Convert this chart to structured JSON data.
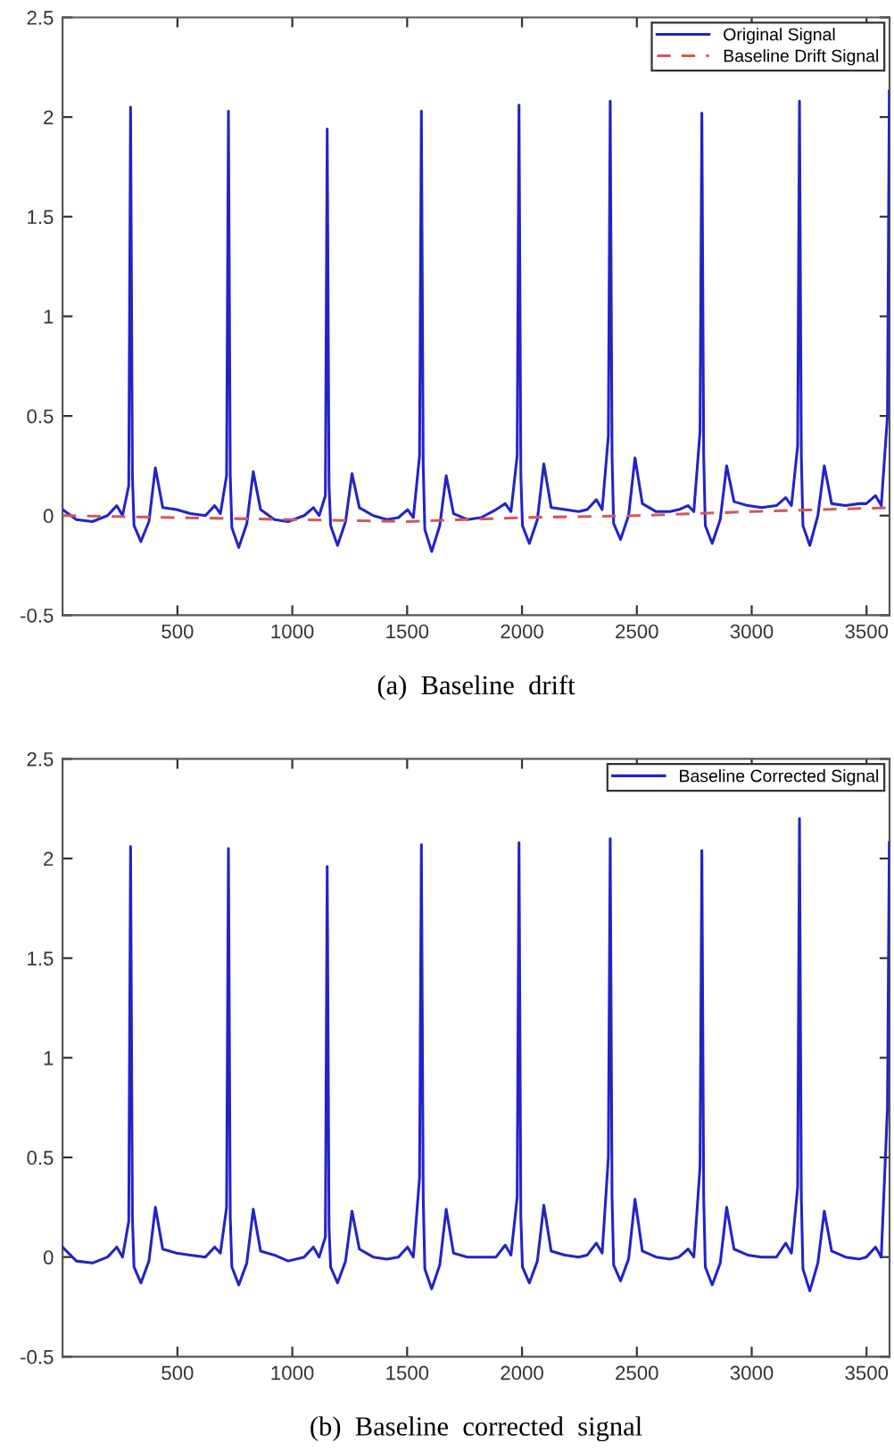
{
  "chart_data": [
    {
      "type": "line",
      "title": "(a)  Baseline  drift",
      "x": [
        0,
        60,
        130,
        196,
        236,
        261,
        288,
        296,
        304,
        311,
        341,
        376,
        404,
        436,
        496,
        556,
        622,
        662,
        687,
        714,
        722,
        730,
        737,
        767,
        802,
        830,
        862,
        922,
        982,
        1052,
        1092,
        1117,
        1144,
        1152,
        1160,
        1167,
        1197,
        1232,
        1260,
        1292,
        1352,
        1412,
        1462,
        1502,
        1527,
        1554,
        1562,
        1570,
        1577,
        1607,
        1642,
        1670,
        1702,
        1762,
        1822,
        1887,
        1927,
        1952,
        1979,
        1987,
        1995,
        2002,
        2032,
        2067,
        2095,
        2127,
        2187,
        2247,
        2284,
        2324,
        2349,
        2376,
        2384,
        2392,
        2399,
        2429,
        2464,
        2492,
        2524,
        2584,
        2644,
        2683,
        2723,
        2748,
        2775,
        2783,
        2791,
        2798,
        2828,
        2863,
        2891,
        2923,
        2983,
        3043,
        3108,
        3148,
        3173,
        3200,
        3208,
        3216,
        3223,
        3253,
        3288,
        3316,
        3348,
        3408,
        3468,
        3499,
        3539,
        3564,
        3591,
        3599
      ],
      "series": [
        {
          "name": "Original Signal",
          "color": "#2323c8",
          "line_style": "solid",
          "values": [
            0.03,
            -0.02,
            -0.03,
            0.0,
            0.05,
            0.0,
            0.15,
            2.05,
            0.2,
            -0.05,
            -0.13,
            -0.03,
            0.24,
            0.04,
            0.03,
            0.01,
            0.0,
            0.05,
            0.01,
            0.2,
            2.03,
            0.2,
            -0.06,
            -0.16,
            -0.04,
            0.22,
            0.03,
            -0.02,
            -0.03,
            0.0,
            0.04,
            0.0,
            0.1,
            1.94,
            0.15,
            -0.05,
            -0.15,
            -0.03,
            0.21,
            0.04,
            0.0,
            -0.02,
            -0.01,
            0.03,
            -0.01,
            0.3,
            2.03,
            0.25,
            -0.07,
            -0.18,
            -0.05,
            0.2,
            0.01,
            -0.02,
            -0.01,
            0.03,
            0.06,
            0.02,
            0.3,
            2.06,
            0.2,
            -0.05,
            -0.14,
            -0.02,
            0.26,
            0.04,
            0.03,
            0.02,
            0.03,
            0.08,
            0.03,
            0.4,
            2.08,
            0.3,
            -0.04,
            -0.12,
            0.0,
            0.29,
            0.06,
            0.02,
            0.02,
            0.03,
            0.05,
            0.02,
            0.42,
            2.02,
            0.3,
            -0.05,
            -0.14,
            -0.02,
            0.25,
            0.07,
            0.05,
            0.04,
            0.05,
            0.09,
            0.05,
            0.35,
            2.08,
            0.3,
            -0.05,
            -0.15,
            0.0,
            0.25,
            0.06,
            0.05,
            0.06,
            0.06,
            0.1,
            0.05,
            0.5,
            2.13
          ]
        },
        {
          "name": "Baseline Drift Signal",
          "color": "#d05a5a",
          "line_style": "dashed",
          "x": [
            0,
            500,
            1000,
            1500,
            2000,
            2500,
            3000,
            3600
          ],
          "values": [
            0.0,
            -0.01,
            -0.02,
            -0.03,
            -0.01,
            0.0,
            0.02,
            0.04
          ]
        }
      ],
      "xlim": [
        0,
        3600
      ],
      "xticks": [
        500,
        1000,
        1500,
        2000,
        2500,
        3000,
        3500
      ],
      "ylim": [
        -0.5,
        2.5
      ],
      "yticks": [
        -0.5,
        0,
        0.5,
        1,
        1.5,
        2,
        2.5
      ],
      "legend": "top right",
      "grid": false
    },
    {
      "type": "line",
      "title": "(b)  Baseline  corrected  signal",
      "x": [
        0,
        60,
        130,
        196,
        236,
        261,
        288,
        296,
        304,
        311,
        341,
        376,
        404,
        436,
        496,
        556,
        622,
        662,
        687,
        714,
        722,
        730,
        737,
        767,
        802,
        830,
        862,
        922,
        982,
        1052,
        1092,
        1117,
        1144,
        1152,
        1160,
        1167,
        1197,
        1232,
        1260,
        1292,
        1352,
        1412,
        1462,
        1502,
        1527,
        1554,
        1562,
        1570,
        1577,
        1607,
        1642,
        1670,
        1702,
        1762,
        1822,
        1887,
        1927,
        1952,
        1979,
        1987,
        1995,
        2002,
        2032,
        2067,
        2095,
        2127,
        2187,
        2247,
        2284,
        2324,
        2349,
        2376,
        2384,
        2392,
        2399,
        2429,
        2464,
        2492,
        2524,
        2584,
        2644,
        2683,
        2723,
        2748,
        2775,
        2783,
        2791,
        2798,
        2828,
        2863,
        2891,
        2923,
        2983,
        3043,
        3108,
        3148,
        3173,
        3200,
        3208,
        3216,
        3223,
        3253,
        3288,
        3316,
        3348,
        3408,
        3468,
        3499,
        3539,
        3564,
        3591,
        3599
      ],
      "series": [
        {
          "name": "Baseline Corrected Signal",
          "color": "#2323c8",
          "line_style": "solid",
          "values": [
            0.05,
            -0.02,
            -0.03,
            0.0,
            0.05,
            0.0,
            0.18,
            2.06,
            0.2,
            -0.05,
            -0.13,
            -0.02,
            0.25,
            0.04,
            0.02,
            0.01,
            0.0,
            0.05,
            0.02,
            0.25,
            2.05,
            0.2,
            -0.05,
            -0.14,
            -0.03,
            0.24,
            0.03,
            0.01,
            -0.02,
            0.0,
            0.05,
            0.0,
            0.1,
            1.96,
            0.15,
            -0.05,
            -0.13,
            -0.02,
            0.23,
            0.04,
            0.0,
            -0.01,
            0.0,
            0.05,
            0.0,
            0.4,
            2.07,
            0.3,
            -0.06,
            -0.16,
            -0.04,
            0.24,
            0.02,
            0.0,
            0.0,
            0.0,
            0.06,
            0.01,
            0.3,
            2.08,
            0.2,
            -0.05,
            -0.13,
            -0.02,
            0.26,
            0.03,
            0.01,
            0.0,
            0.01,
            0.07,
            0.02,
            0.5,
            2.1,
            0.3,
            -0.04,
            -0.12,
            -0.01,
            0.29,
            0.03,
            0.0,
            -0.01,
            0.0,
            0.04,
            0.0,
            0.45,
            2.04,
            0.3,
            -0.05,
            -0.14,
            -0.03,
            0.25,
            0.04,
            0.01,
            0.0,
            0.0,
            0.07,
            0.02,
            0.35,
            2.2,
            0.3,
            -0.06,
            -0.17,
            -0.03,
            0.23,
            0.03,
            0.0,
            -0.01,
            0.0,
            0.05,
            0.0,
            0.75,
            2.08
          ]
        }
      ],
      "xlim": [
        0,
        3600
      ],
      "xticks": [
        500,
        1000,
        1500,
        2000,
        2500,
        3000,
        3500
      ],
      "ylim": [
        -0.5,
        2.5
      ],
      "yticks": [
        -0.5,
        0,
        0.5,
        1,
        1.5,
        2,
        2.5
      ],
      "legend": "top right",
      "grid": false
    }
  ]
}
